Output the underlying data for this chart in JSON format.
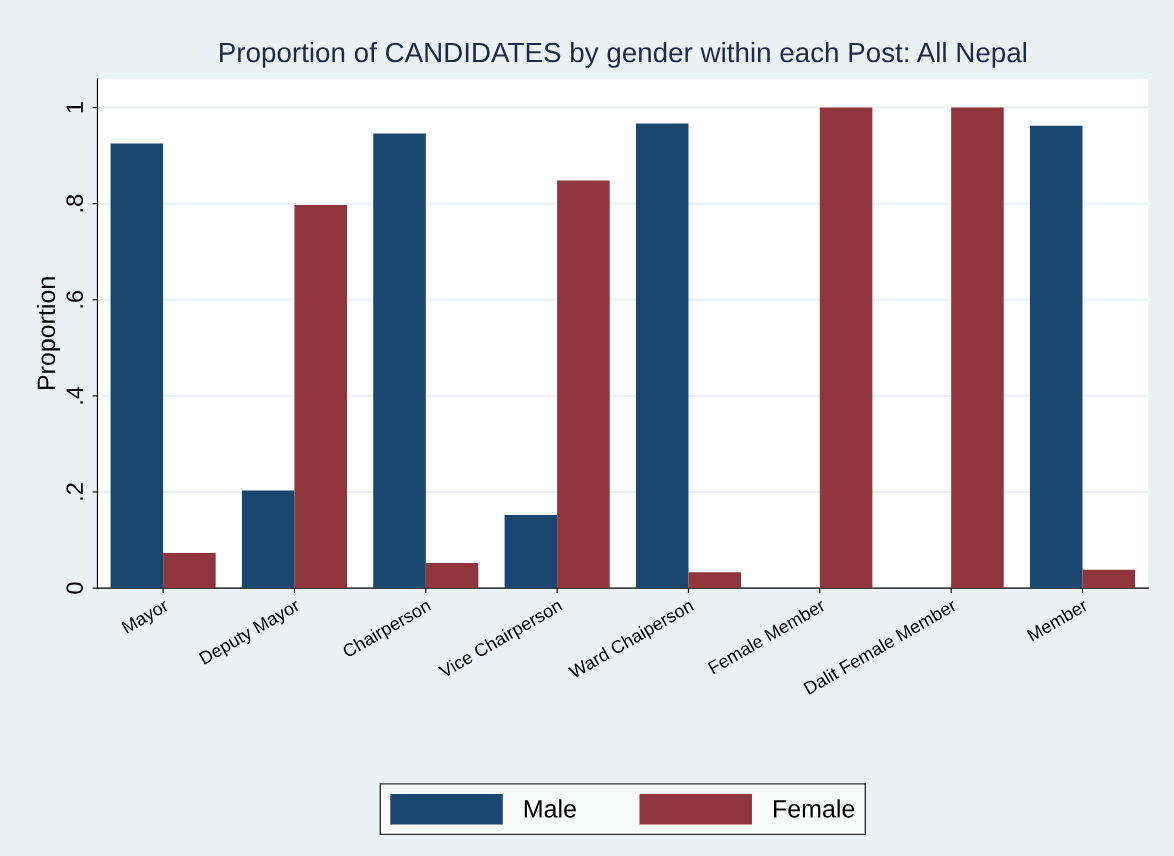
{
  "chart_data": {
    "type": "bar",
    "title": "Proportion of CANDIDATES by gender within each Post: All Nepal",
    "ylabel": "Proportion",
    "categories": [
      "Mayor",
      "Deputy Mayor",
      "Chairperson",
      "Vice Chairperson",
      "Ward Chaiperson",
      "Female Member",
      "Dalit Female Member",
      "Member"
    ],
    "series": [
      {
        "name": "Male",
        "color": "#1a476f",
        "values": [
          0.925,
          0.203,
          0.946,
          0.152,
          0.967,
          0,
          0,
          0.962
        ]
      },
      {
        "name": "Female",
        "color": "#90353b",
        "values": [
          0.073,
          0.797,
          0.052,
          0.848,
          0.033,
          1,
          1,
          0.038
        ]
      }
    ],
    "ylim": [
      0,
      1.06
    ],
    "yticks": [
      0,
      {
        "value": 0.2,
        "label": ".2"
      },
      {
        "value": 0.4,
        "label": ".4"
      },
      {
        "value": 0.6,
        "label": ".6"
      },
      {
        "value": 0.8,
        "label": ".8"
      },
      1
    ],
    "grid": "y",
    "legend": "bottom"
  }
}
